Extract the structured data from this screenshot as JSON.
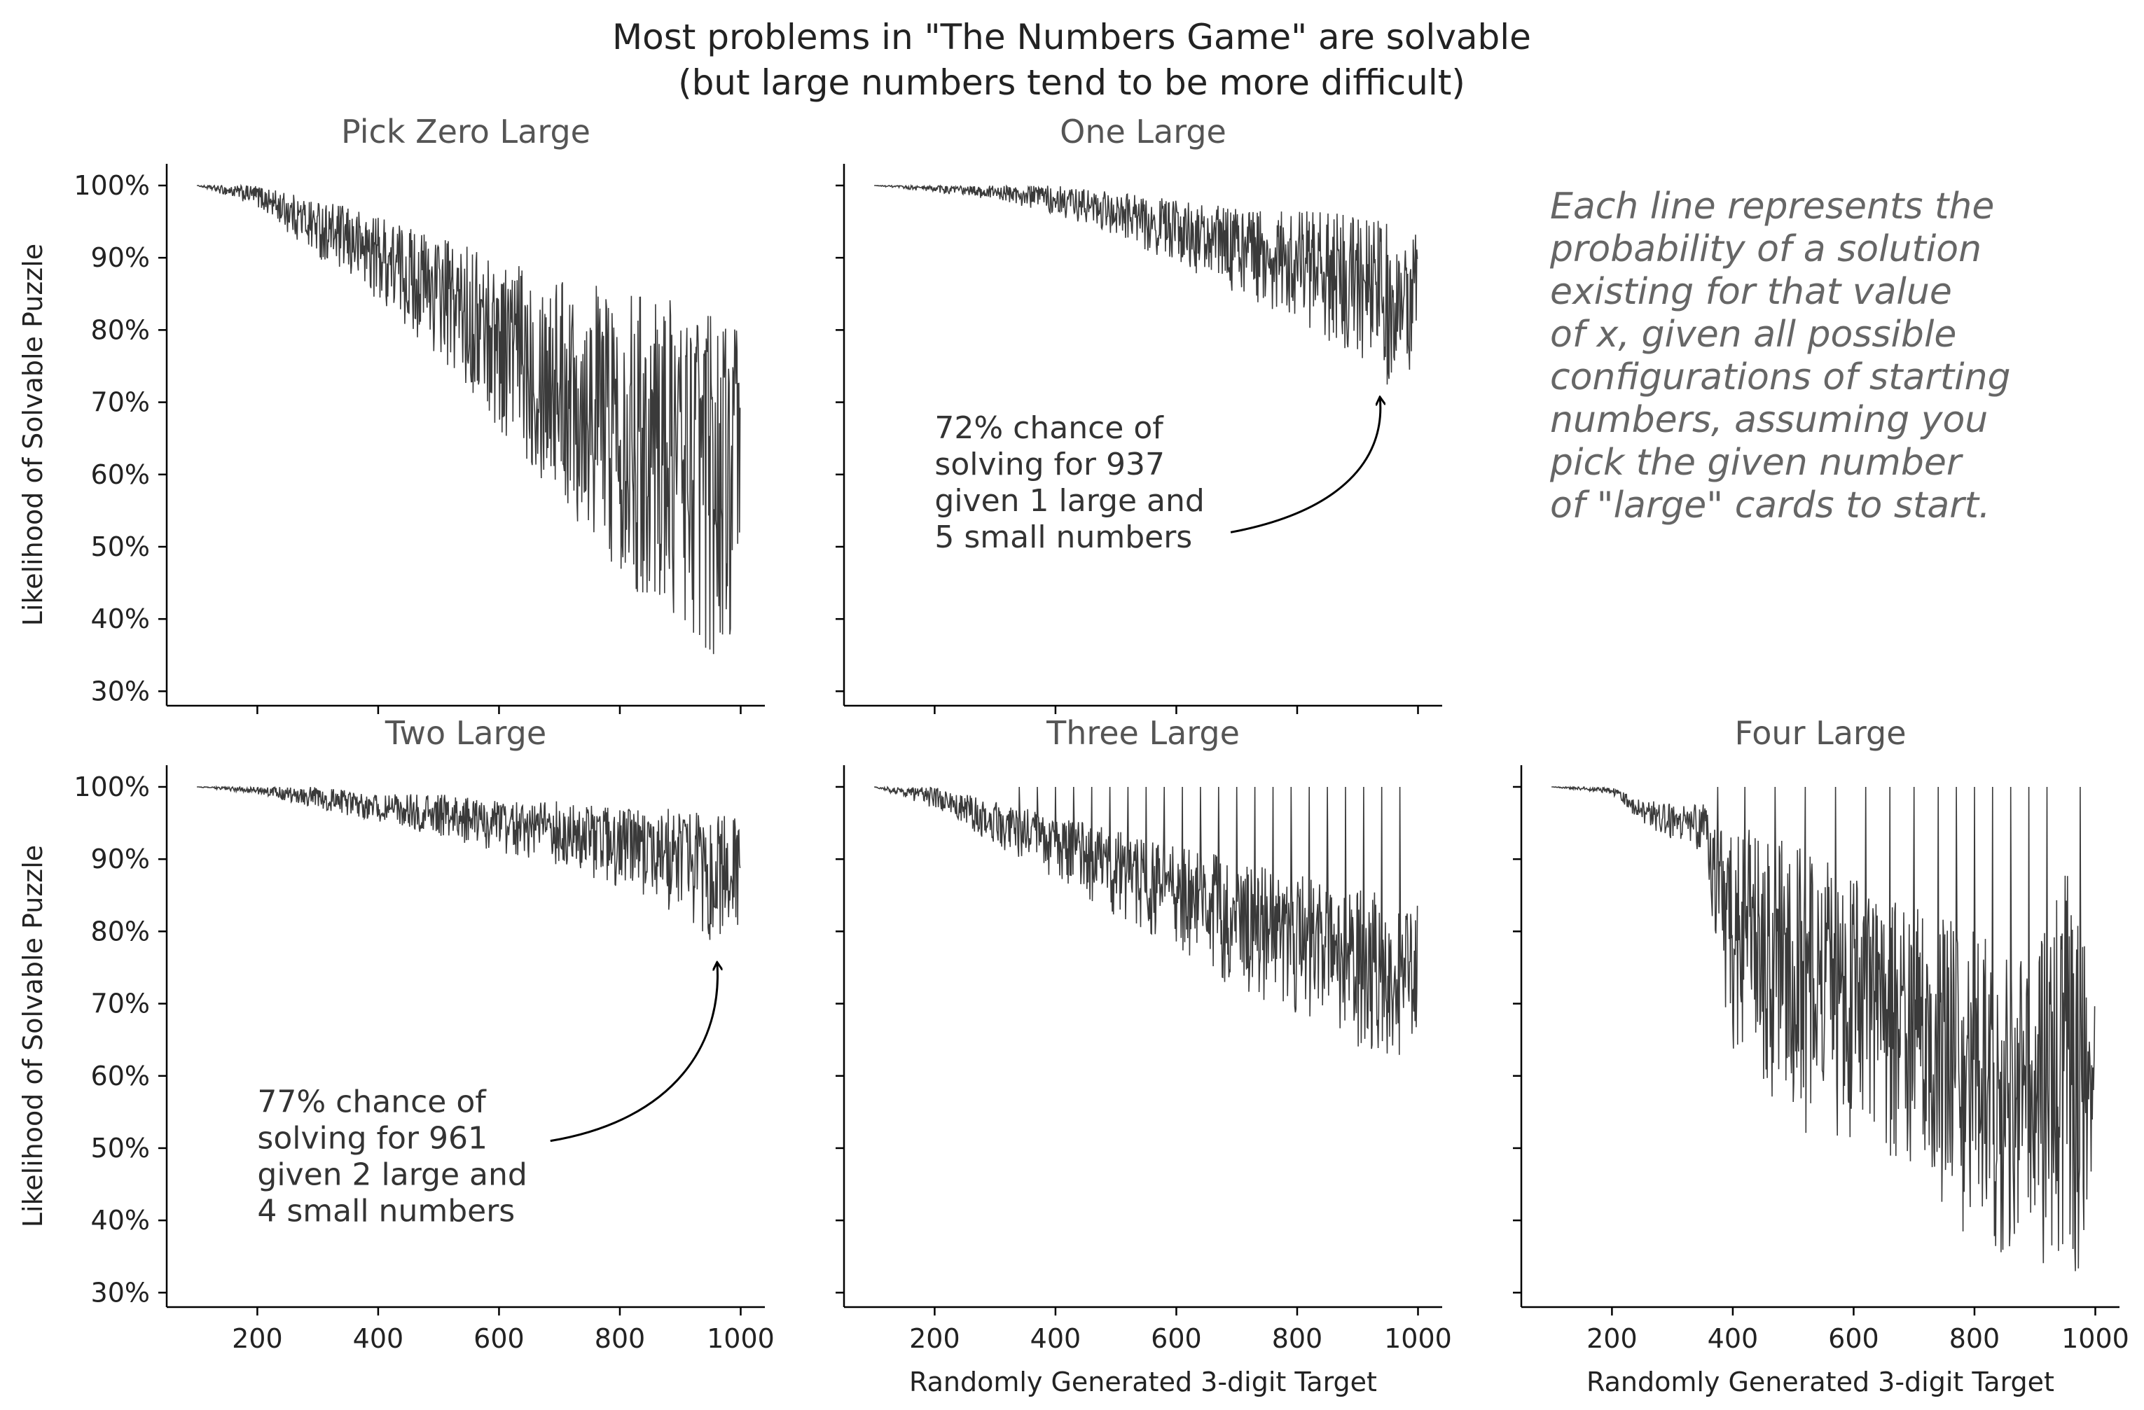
{
  "figure": {
    "title_line1": "Most problems in \"The Numbers Game\" are solvable",
    "title_line2": "(but large numbers tend to be more difficult)",
    "note_lines": [
      "Each line represents the",
      "probability of a solution",
      "existing for that value",
      "of x, given all possible",
      "configurations of starting",
      "numbers, assuming you",
      "pick the given number",
      "of \"large\" cards to start."
    ]
  },
  "colors": {
    "series": "#3a3a3a",
    "panel_title": "#555555",
    "note": "#666666",
    "text": "#222222"
  },
  "chart_data": [
    {
      "type": "line",
      "title": "Pick Zero Large",
      "xlabel": "",
      "ylabel": "Likelihood of Solvable Puzzle",
      "xlim": [
        100,
        999
      ],
      "ylim": [
        0.28,
        1.03
      ],
      "xticks": [
        200,
        400,
        600,
        800,
        1000
      ],
      "show_xtick_labels": false,
      "yticks": [
        0.3,
        0.4,
        0.5,
        0.6,
        0.7,
        0.8,
        0.9,
        1.0
      ],
      "ytick_labels": [
        "30%",
        "40%",
        "50%",
        "60%",
        "70%",
        "80%",
        "90%",
        "100%"
      ],
      "show_ytick_labels": true,
      "envelope": {
        "x": [
          100,
          200,
          300,
          400,
          500,
          600,
          700,
          800,
          900,
          950,
          999
        ],
        "upper": [
          1.0,
          1.0,
          0.98,
          0.96,
          0.93,
          0.9,
          0.88,
          0.86,
          0.84,
          0.83,
          0.82
        ],
        "lower": [
          1.0,
          0.97,
          0.9,
          0.84,
          0.76,
          0.66,
          0.56,
          0.46,
          0.38,
          0.35,
          0.33
        ]
      },
      "annotation": null
    },
    {
      "type": "line",
      "title": "One Large",
      "xlabel": "",
      "ylabel": "",
      "xlim": [
        100,
        999
      ],
      "ylim": [
        0.28,
        1.03
      ],
      "xticks": [
        200,
        400,
        600,
        800,
        1000
      ],
      "show_xtick_labels": false,
      "yticks": [
        0.3,
        0.4,
        0.5,
        0.6,
        0.7,
        0.8,
        0.9,
        1.0
      ],
      "ytick_labels": [
        "30%",
        "40%",
        "50%",
        "60%",
        "70%",
        "80%",
        "90%",
        "100%"
      ],
      "show_ytick_labels": false,
      "envelope": {
        "x": [
          100,
          200,
          300,
          400,
          500,
          600,
          700,
          800,
          900,
          950,
          999
        ],
        "upper": [
          1.0,
          1.0,
          1.0,
          1.0,
          0.99,
          0.98,
          0.97,
          0.97,
          0.96,
          0.95,
          0.94
        ],
        "lower": [
          1.0,
          0.99,
          0.98,
          0.96,
          0.93,
          0.89,
          0.85,
          0.81,
          0.76,
          0.72,
          0.75
        ]
      },
      "annotation": {
        "lines": [
          "72% chance of",
          "solving for 937",
          "given 1 large and",
          "5 small numbers"
        ],
        "point": [
          937,
          0.72
        ],
        "text_pos": [
          200,
          0.65
        ],
        "arrow_start": [
          690,
          0.52
        ]
      }
    },
    {
      "type": "line",
      "title": "Two Large",
      "xlabel": "",
      "ylabel": "Likelihood of Solvable Puzzle",
      "xlim": [
        100,
        999
      ],
      "ylim": [
        0.28,
        1.03
      ],
      "xticks": [
        200,
        400,
        600,
        800,
        1000
      ],
      "xtick_labels": [
        "200",
        "400",
        "600",
        "800",
        "1000"
      ],
      "show_xtick_labels": true,
      "yticks": [
        0.3,
        0.4,
        0.5,
        0.6,
        0.7,
        0.8,
        0.9,
        1.0
      ],
      "ytick_labels": [
        "30%",
        "40%",
        "50%",
        "60%",
        "70%",
        "80%",
        "90%",
        "100%"
      ],
      "show_ytick_labels": true,
      "envelope": {
        "x": [
          100,
          200,
          300,
          400,
          500,
          600,
          700,
          800,
          900,
          950,
          999
        ],
        "upper": [
          1.0,
          1.0,
          1.0,
          0.99,
          0.99,
          0.98,
          0.98,
          0.97,
          0.97,
          0.96,
          0.96
        ],
        "lower": [
          1.0,
          0.99,
          0.97,
          0.95,
          0.93,
          0.91,
          0.89,
          0.86,
          0.82,
          0.78,
          0.8
        ]
      },
      "annotation": {
        "lines": [
          "77% chance of",
          "solving for 961",
          "given 2 large and",
          "4 small numbers"
        ],
        "point": [
          961,
          0.77
        ],
        "text_pos": [
          200,
          0.55
        ],
        "arrow_start": [
          685,
          0.51
        ]
      }
    },
    {
      "type": "line",
      "title": "Three Large",
      "xlabel": "Randomly Generated 3-digit Target",
      "ylabel": "",
      "xlim": [
        100,
        999
      ],
      "ylim": [
        0.28,
        1.03
      ],
      "xticks": [
        200,
        400,
        600,
        800,
        1000
      ],
      "xtick_labels": [
        "200",
        "400",
        "600",
        "800",
        "1000"
      ],
      "show_xtick_labels": true,
      "yticks": [
        0.3,
        0.4,
        0.5,
        0.6,
        0.7,
        0.8,
        0.9,
        1.0
      ],
      "ytick_labels": [
        "30%",
        "40%",
        "50%",
        "60%",
        "70%",
        "80%",
        "90%",
        "100%"
      ],
      "show_ytick_labels": false,
      "envelope": {
        "x": [
          100,
          200,
          300,
          400,
          500,
          600,
          700,
          800,
          900,
          950,
          999
        ],
        "upper": [
          1.0,
          1.0,
          0.98,
          0.96,
          0.94,
          0.92,
          0.9,
          0.88,
          0.86,
          0.85,
          0.84
        ],
        "lower": [
          1.0,
          0.97,
          0.92,
          0.87,
          0.82,
          0.77,
          0.72,
          0.68,
          0.64,
          0.62,
          0.64
        ]
      },
      "spikes_to_one": [
        340,
        370,
        400,
        430,
        460,
        490,
        520,
        550,
        580,
        610,
        640,
        670,
        700,
        730,
        760,
        790,
        820,
        850,
        880,
        910,
        940,
        970
      ],
      "annotation": null
    },
    {
      "type": "line",
      "title": "Four Large",
      "xlabel": "Randomly Generated 3-digit Target",
      "ylabel": "",
      "xlim": [
        100,
        999
      ],
      "ylim": [
        0.28,
        1.03
      ],
      "xticks": [
        200,
        400,
        600,
        800,
        1000
      ],
      "xtick_labels": [
        "200",
        "400",
        "600",
        "800",
        "1000"
      ],
      "show_xtick_labels": true,
      "yticks": [
        0.3,
        0.4,
        0.5,
        0.6,
        0.7,
        0.8,
        0.9,
        1.0
      ],
      "ytick_labels": [
        "30%",
        "40%",
        "50%",
        "60%",
        "70%",
        "80%",
        "90%",
        "100%"
      ],
      "show_ytick_labels": false,
      "envelope": {
        "x": [
          100,
          200,
          250,
          350,
          400,
          500,
          600,
          700,
          800,
          900,
          950,
          999
        ],
        "upper": [
          1.0,
          1.0,
          0.98,
          0.98,
          0.95,
          0.92,
          0.88,
          0.84,
          0.8,
          0.75,
          0.92,
          0.72
        ],
        "lower": [
          1.0,
          0.99,
          0.95,
          0.9,
          0.62,
          0.52,
          0.5,
          0.48,
          0.36,
          0.34,
          0.31,
          0.35
        ]
      },
      "spikes_to_one": [
        375,
        420,
        470,
        520,
        570,
        620,
        660,
        700,
        740,
        770,
        800,
        830,
        860,
        890,
        920,
        975
      ],
      "annotation": null
    }
  ]
}
